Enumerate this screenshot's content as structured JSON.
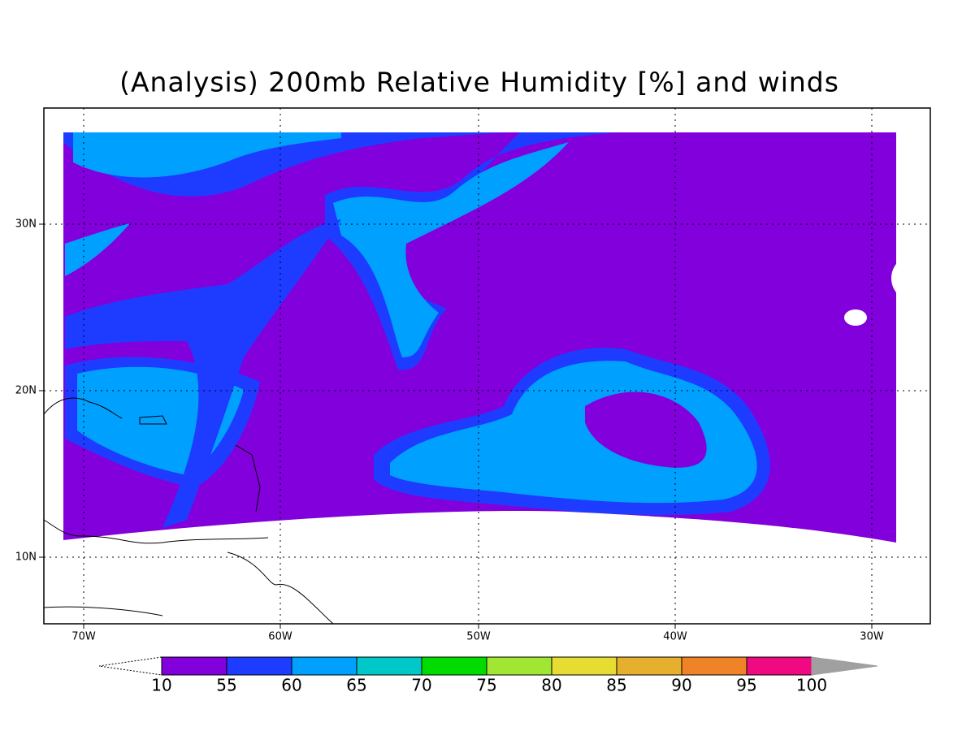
{
  "title": "(Analysis) 200mb Relative Humidity [%] and winds",
  "map": {
    "lat_labels": [
      "30N",
      "20N",
      "10N"
    ],
    "lon_labels": [
      "70W",
      "60W",
      "50W",
      "40W",
      "30W"
    ]
  },
  "colorbar": {
    "labels": [
      10,
      55,
      60,
      65,
      70,
      75,
      80,
      85,
      90,
      95,
      100
    ],
    "colors": [
      "#8200dc",
      "#1e3cff",
      "#00a0ff",
      "#00c8c8",
      "#00dc00",
      "#a0e632",
      "#e6dc32",
      "#e6af2d",
      "#f08228",
      "#f00a82"
    ],
    "over_color": "#a0a0a0"
  }
}
